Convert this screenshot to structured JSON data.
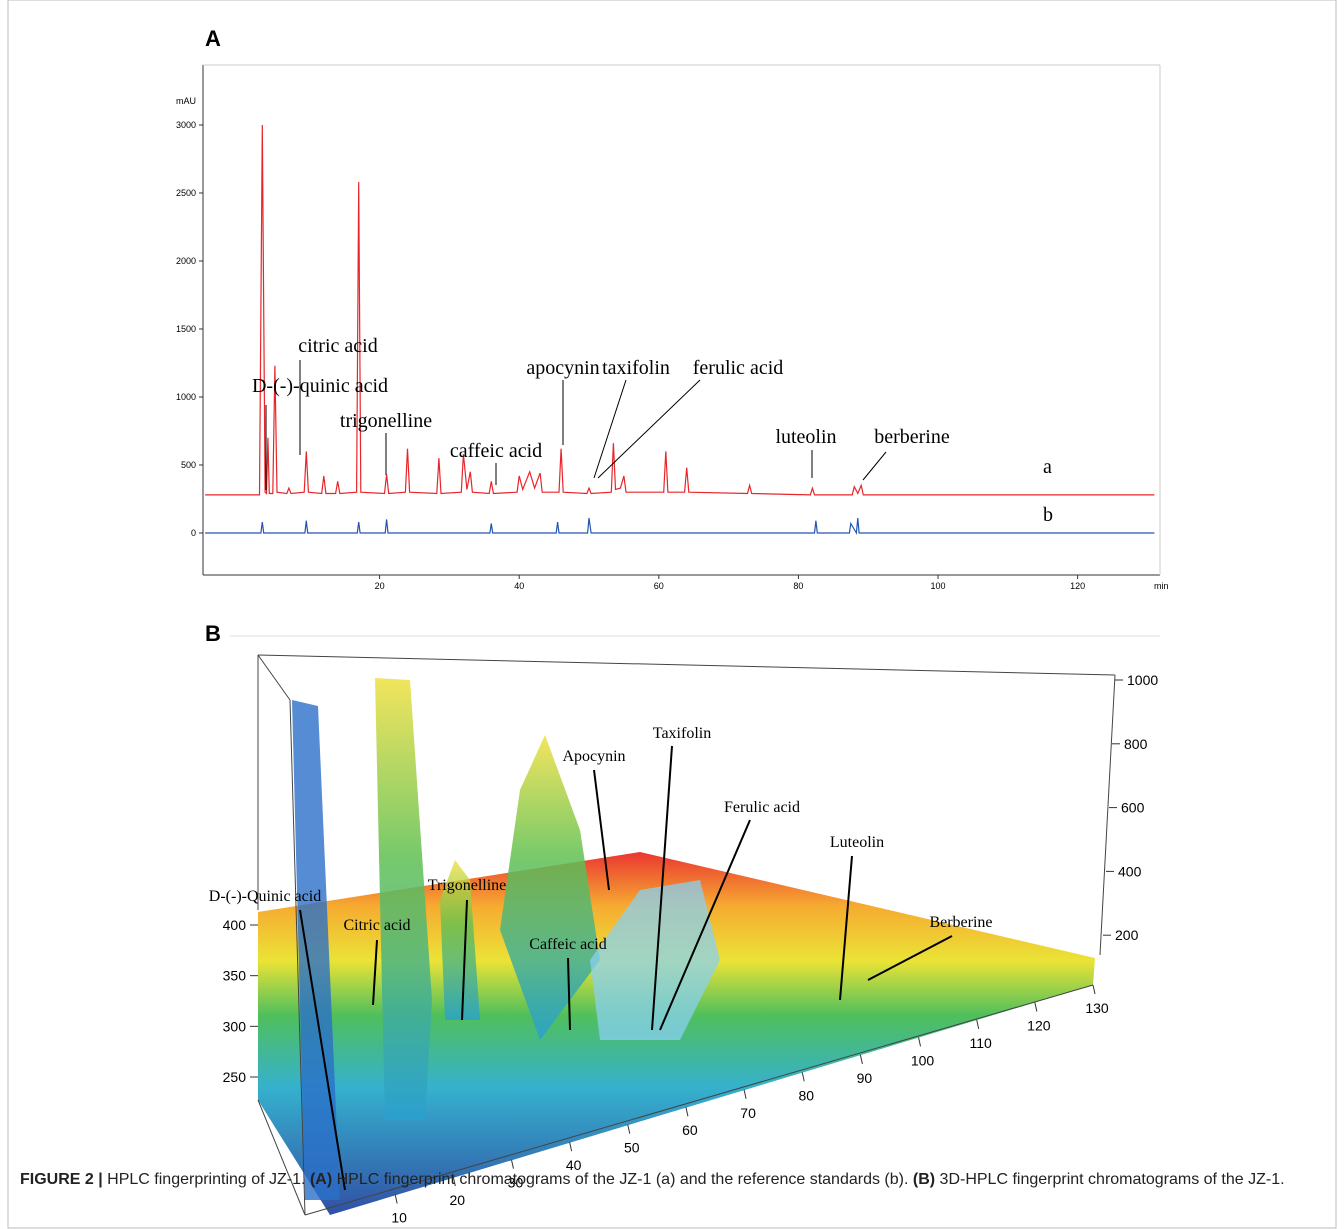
{
  "chart_data": [
    {
      "type": "line",
      "panel_label": "A",
      "y_unit": "mAU",
      "x_unit": "min",
      "xlim": [
        -5.3,
        131.8
      ],
      "ylim": [
        -309,
        3441
      ],
      "xticks": [
        20,
        40,
        60,
        80,
        100,
        120
      ],
      "yticks": [
        0,
        500,
        1000,
        1500,
        2000,
        2500,
        3000
      ],
      "series": [
        {
          "name": "a",
          "color": "#e8262a",
          "x": [
            -5,
            2.8,
            3.2,
            3.6,
            3.8,
            4.0,
            4.2,
            4.7,
            5.0,
            5.3,
            6.7,
            7.0,
            7.3,
            9.2,
            9.5,
            9.8,
            11.7,
            12,
            12.3,
            13.7,
            14,
            14.3,
            16.7,
            17,
            17.3,
            20.7,
            21,
            21.3,
            23.7,
            24,
            24.3,
            28.2,
            28.5,
            28.8,
            31.7,
            32,
            32.5,
            33,
            33.3,
            35.7,
            36,
            36.3,
            39.7,
            40,
            40.5,
            41.5,
            42.2,
            43,
            43.3,
            45.7,
            46,
            46.3,
            49.7,
            50,
            50.3,
            53.2,
            53.5,
            53.8,
            54.5,
            55,
            55.3,
            60.7,
            61,
            61.3,
            63.7,
            64,
            64.3,
            72.7,
            73,
            73.3,
            81.7,
            82,
            82.3,
            87.7,
            88,
            88.5,
            89,
            89.3,
            131
          ],
          "values": [
            280,
            280,
            3000,
            300,
            290,
            700,
            290,
            290,
            1230,
            300,
            290,
            330,
            290,
            300,
            600,
            300,
            290,
            420,
            290,
            290,
            380,
            290,
            300,
            2580,
            300,
            290,
            430,
            290,
            300,
            620,
            300,
            290,
            550,
            290,
            300,
            580,
            320,
            450,
            300,
            290,
            380,
            290,
            300,
            420,
            320,
            450,
            330,
            440,
            300,
            300,
            620,
            300,
            290,
            330,
            290,
            300,
            660,
            320,
            330,
            420,
            300,
            300,
            600,
            300,
            300,
            480,
            300,
            290,
            350,
            290,
            280,
            330,
            280,
            280,
            340,
            290,
            350,
            280,
            280
          ]
        },
        {
          "name": "b",
          "color": "#2456b0",
          "x": [
            -5,
            3,
            3.2,
            3.4,
            9.3,
            9.5,
            9.7,
            16.8,
            17,
            17.2,
            20.8,
            21,
            21.2,
            35.8,
            36,
            36.2,
            45.3,
            45.5,
            45.7,
            49.8,
            50,
            50.3,
            82.3,
            82.5,
            82.7,
            87.3,
            87.5,
            88.3,
            88.5,
            88.7,
            131
          ],
          "values": [
            0,
            0,
            80,
            0,
            0,
            90,
            0,
            0,
            80,
            0,
            0,
            100,
            0,
            0,
            70,
            0,
            0,
            80,
            0,
            0,
            110,
            0,
            0,
            90,
            0,
            0,
            70,
            0,
            110,
            0,
            0
          ]
        }
      ],
      "annotations": [
        "D-(-)-quinic acid",
        "citric acid",
        "trigonelline",
        "caffeic acid",
        "apocynin",
        "taxifolin",
        "ferulic acid",
        "luteolin",
        "berberine"
      ]
    },
    {
      "type": "surface3d",
      "panel_label": "B",
      "xlim": [
        0,
        130
      ],
      "xticks": [
        10,
        20,
        30,
        40,
        50,
        60,
        70,
        80,
        90,
        100,
        110,
        120,
        130
      ],
      "zlim": [
        0,
        1000
      ],
      "zticks": [
        200,
        400,
        600,
        800,
        1000
      ],
      "ylim": [
        250,
        400
      ],
      "yticks": [
        250,
        300,
        350,
        400
      ],
      "annotations": [
        "D-(-)-Quinic acid",
        "Citric acid",
        "Trigonelline",
        "Caffeic acid",
        "Apocynin",
        "Taxifolin",
        "Ferulic acid",
        "Luteolin",
        "Berberine"
      ]
    }
  ],
  "caption": {
    "label": "FIGURE 2 |",
    "text1": "HPLC fingerprinting of JZ-1.",
    "a": "(A)",
    "text2": "HPLC fingerprint chromatograms of the JZ-1 (a) and the reference standards (b).",
    "b": "(B)",
    "text3": "3D-HPLC fingerprint chromatograms of the JZ-1."
  }
}
